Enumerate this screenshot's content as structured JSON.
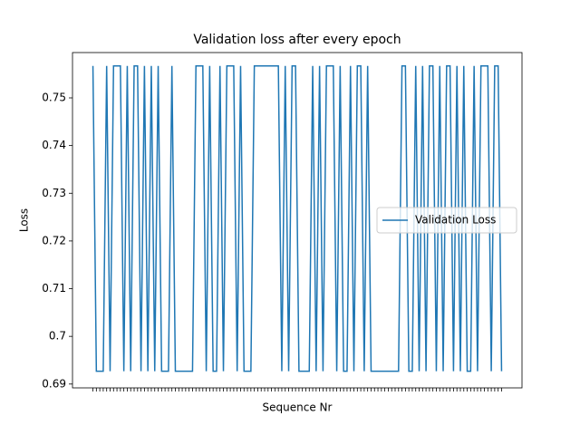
{
  "chart_data": {
    "type": "line",
    "title": "Validation loss after every epoch",
    "x_label": "Sequence Nr",
    "y_label": "Loss",
    "categories": [
      null,
      null,
      null,
      null,
      null,
      null,
      null,
      null,
      null,
      null,
      null,
      null,
      null,
      null,
      null,
      null,
      null,
      null,
      null,
      null,
      null,
      null,
      null,
      null,
      null,
      null,
      null,
      null,
      null,
      null,
      null,
      null,
      null,
      null,
      null,
      null,
      null,
      null,
      null,
      null,
      null,
      null,
      null,
      null,
      null,
      null,
      null,
      null,
      null,
      null,
      null,
      null,
      null,
      null,
      null,
      null,
      null,
      null,
      null,
      null,
      null,
      null,
      null,
      null,
      null,
      null,
      null,
      null,
      null,
      null,
      null,
      null,
      null,
      null,
      null,
      null,
      null,
      null,
      null,
      null,
      null,
      null,
      null,
      null,
      null,
      null,
      null,
      null,
      null,
      null,
      null,
      null,
      null,
      null,
      null,
      null,
      null,
      null,
      null,
      null,
      null,
      null,
      null,
      null,
      null,
      null,
      null,
      null,
      null,
      null,
      null,
      null,
      null,
      null,
      null,
      null,
      null,
      null,
      null,
      null
    ],
    "series": [
      {
        "name": "Validation Loss",
        "color": "#1f77b4",
        "values": [
          0.7567,
          0.6927,
          0.6927,
          0.6927,
          0.7567,
          0.6927,
          0.7567,
          0.7567,
          0.7567,
          0.6927,
          0.7567,
          0.6927,
          0.7567,
          0.7567,
          0.6927,
          0.7567,
          0.6927,
          0.7567,
          0.6927,
          0.7567,
          0.6927,
          0.6927,
          0.6927,
          0.7567,
          0.6927,
          0.6927,
          0.6927,
          0.6927,
          0.6927,
          0.6927,
          0.7567,
          0.7567,
          0.7567,
          0.6927,
          0.7567,
          0.6927,
          0.6927,
          0.7567,
          0.6927,
          0.7567,
          0.7567,
          0.7567,
          0.6927,
          0.7567,
          0.6927,
          0.6927,
          0.6927,
          0.7567,
          0.7567,
          0.7567,
          0.7567,
          0.7567,
          0.7567,
          0.7567,
          0.7567,
          0.6927,
          0.7567,
          0.6927,
          0.7567,
          0.7567,
          0.6927,
          0.6927,
          0.6927,
          0.6927,
          0.7567,
          0.6927,
          0.7567,
          0.6927,
          0.7567,
          0.7567,
          0.7567,
          0.6927,
          0.7567,
          0.6927,
          0.6927,
          0.7567,
          0.6927,
          0.7567,
          0.7567,
          0.6927,
          0.7567,
          0.6927,
          0.6927,
          0.6927,
          0.6927,
          0.6927,
          0.6927,
          0.6927,
          0.6927,
          0.6927,
          0.7567,
          0.7567,
          0.6927,
          0.6927,
          0.7567,
          0.6927,
          0.7567,
          0.6927,
          0.7567,
          0.7567,
          0.6927,
          0.7567,
          0.6927,
          0.7567,
          0.7567,
          0.6927,
          0.7567,
          0.6927,
          0.7567,
          0.6927,
          0.6927,
          0.7567,
          0.6927,
          0.7567,
          0.7567,
          0.7567,
          0.6927,
          0.7567,
          0.7567,
          0.6927
        ]
      }
    ],
    "ylim": [
      0.6892,
      0.7595
    ],
    "yticks": [
      0.69,
      0.7,
      0.71,
      0.72,
      0.73,
      0.74,
      0.75
    ],
    "xlim": [
      -5.95,
      124.95
    ],
    "legend": "center right",
    "grid": false
  }
}
